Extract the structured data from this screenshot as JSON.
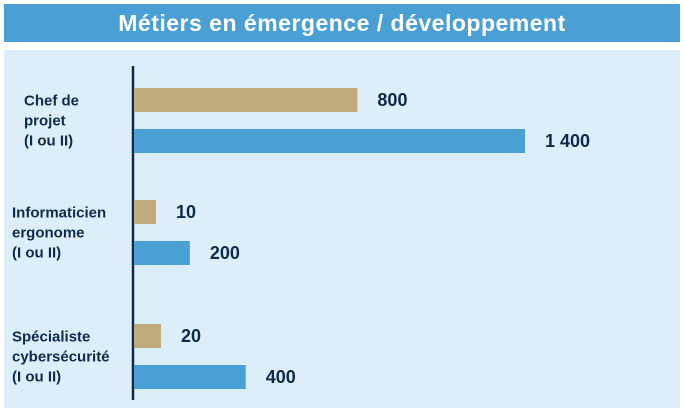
{
  "title": "Métiers en émergence / développement",
  "colors": {
    "title_bg": "#4a9fd4",
    "panel_bg": "#dbeefa",
    "series_a": "#bfab7b",
    "series_b": "#4a9fd4",
    "text": "#0f2a4a"
  },
  "chart_data": {
    "type": "bar",
    "orientation": "horizontal",
    "categories": [
      [
        "Chef de",
        "projet",
        "(I ou II)"
      ],
      [
        "Informaticien",
        "ergonome",
        "(I ou II)"
      ],
      [
        "Spécialiste",
        "cybersécurité",
        "(I ou II)"
      ]
    ],
    "series": [
      {
        "color": "#bfab7b",
        "values": [
          800,
          10,
          20
        ],
        "labels": [
          "800",
          "10",
          "20"
        ]
      },
      {
        "color": "#4a9fd4",
        "values": [
          1400,
          200,
          400
        ],
        "labels": [
          "1 400",
          "200",
          "400"
        ]
      }
    ],
    "xlim": [
      0,
      1400
    ],
    "grid": false,
    "legend": "none"
  }
}
